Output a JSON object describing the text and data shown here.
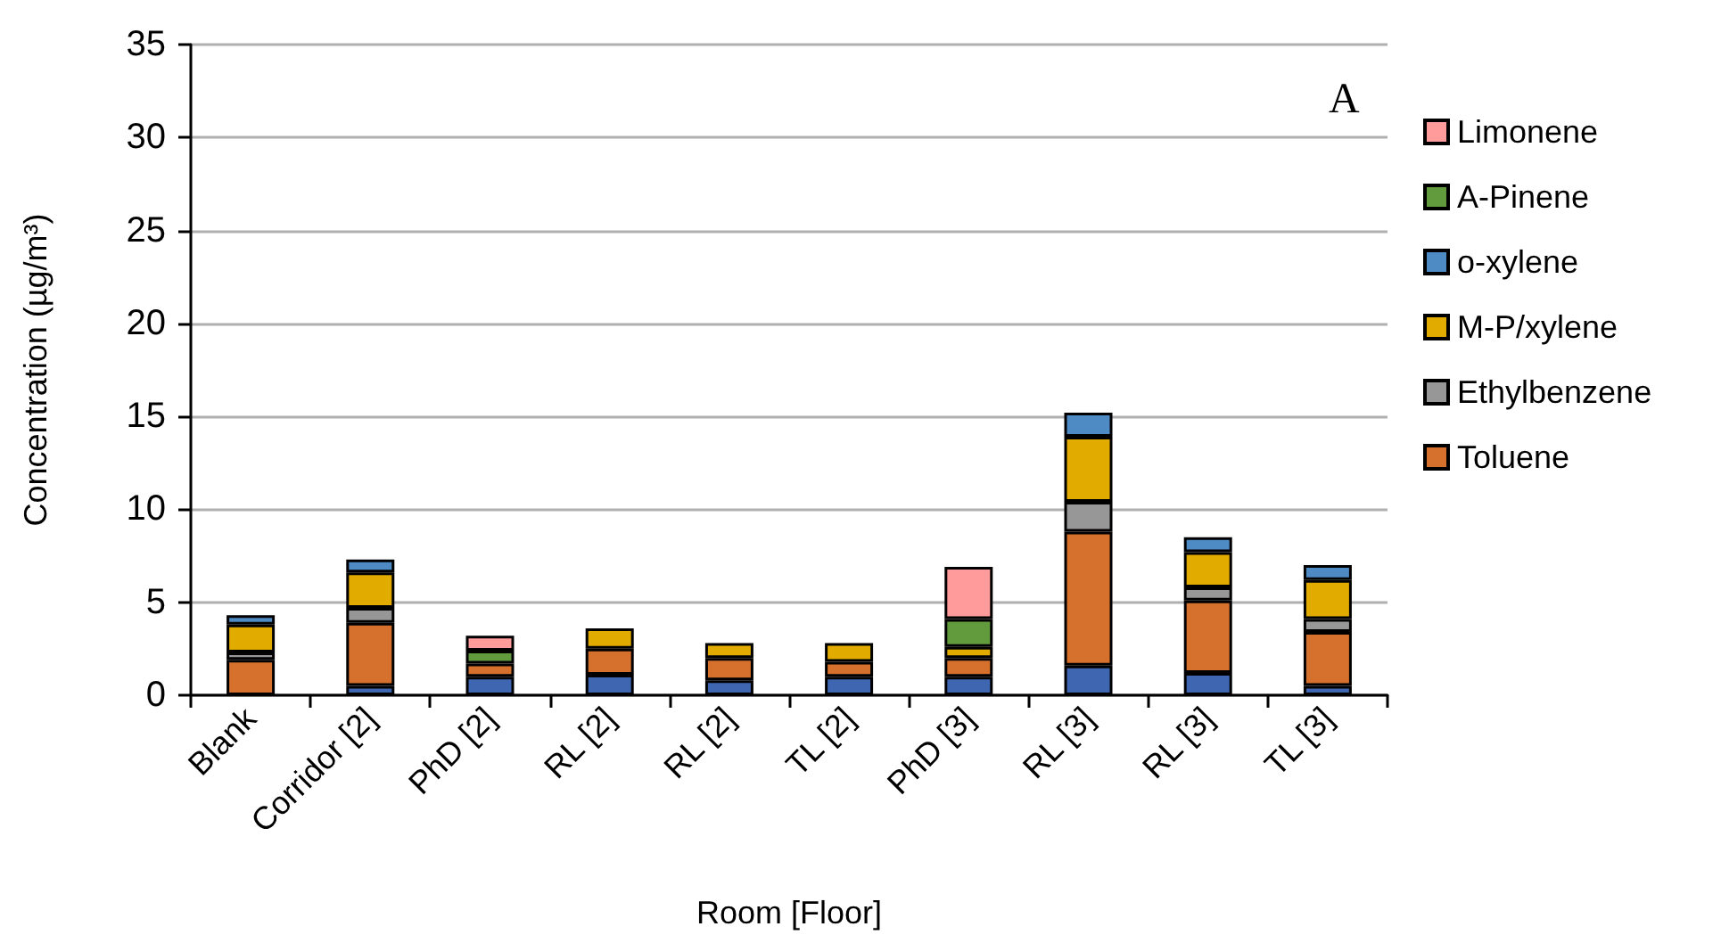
{
  "chart_data": {
    "type": "bar",
    "stacked": true,
    "xlabel": "Room [Floor]",
    "ylabel": "Concentration (µg/m³)",
    "annotations": [
      "A"
    ],
    "categories": [
      "Blank",
      "Corridor [2]",
      "PhD [2]",
      "RL [2]",
      "RL [2]",
      "TL [2]",
      "PhD [3]",
      "RL [3]",
      "RL [3]",
      "TL [3]"
    ],
    "series": [
      {
        "color": "#3f66b0",
        "values": [
          null,
          0.5,
          1.0,
          1.1,
          0.8,
          1.0,
          1.0,
          1.6,
          1.2,
          0.5
        ]
      },
      {
        "name": "Toluene",
        "color": "#d6702d",
        "values": [
          1.9,
          3.4,
          0.7,
          1.4,
          1.2,
          0.8,
          1.0,
          7.2,
          3.9,
          2.9
        ]
      },
      {
        "name": "Ethylbenzene",
        "color": "#979797",
        "values": [
          0.4,
          0.8,
          null,
          null,
          null,
          null,
          null,
          1.6,
          0.7,
          0.7
        ]
      },
      {
        "name": "M-P/xylene",
        "color": "#e2ab00",
        "values": [
          1.5,
          1.9,
          null,
          1.1,
          0.8,
          1.0,
          0.6,
          3.5,
          1.9,
          2.1
        ]
      },
      {
        "name": "o-xylene",
        "color": "#4e8bc4",
        "values": [
          0.5,
          0.7,
          null,
          null,
          null,
          null,
          null,
          1.3,
          0.8,
          0.8
        ]
      },
      {
        "name": "A-Pinene",
        "color": "#629a3e",
        "values": [
          null,
          null,
          0.7,
          null,
          null,
          null,
          1.5,
          null,
          null,
          null
        ]
      },
      {
        "name": "Limonene",
        "color": "#ff9b9b",
        "values": [
          null,
          null,
          0.8,
          null,
          null,
          null,
          2.8,
          null,
          null,
          null
        ]
      }
    ],
    "ylim": [
      0,
      35
    ],
    "yticks": [
      0,
      5,
      10,
      15,
      20,
      25,
      30,
      35
    ],
    "grid": "y",
    "legend": "right"
  }
}
